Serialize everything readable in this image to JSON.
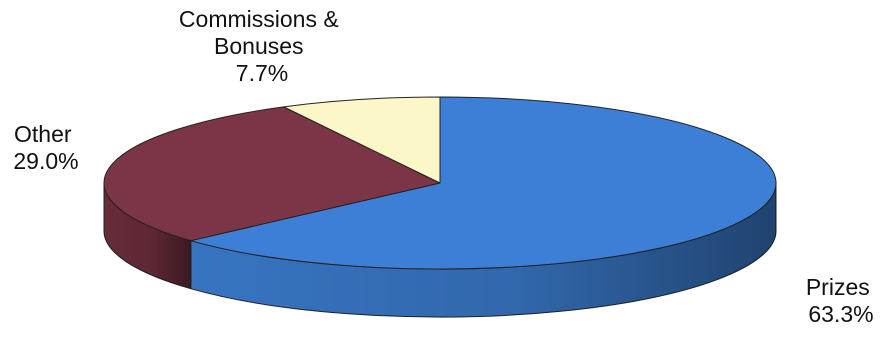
{
  "chart_data": {
    "type": "pie",
    "style": "3d",
    "legend": "none",
    "slices": [
      {
        "label_lines": [
          "Prizes"
        ],
        "value_label": "63.3%",
        "value": 63.3,
        "color": "#3d7fd6",
        "side_color": "#3a7acb"
      },
      {
        "label_lines": [
          "Other"
        ],
        "value_label": "29.0%",
        "value": 29.0,
        "color": "#7c3546",
        "side_color": "#6d2e3c"
      },
      {
        "label_lines": [
          "Commissions &",
          "Bonuses"
        ],
        "value_label": "7.7%",
        "value": 7.7,
        "color": "#fbf7c8",
        "side_color": "#e6e0b0"
      }
    ]
  }
}
